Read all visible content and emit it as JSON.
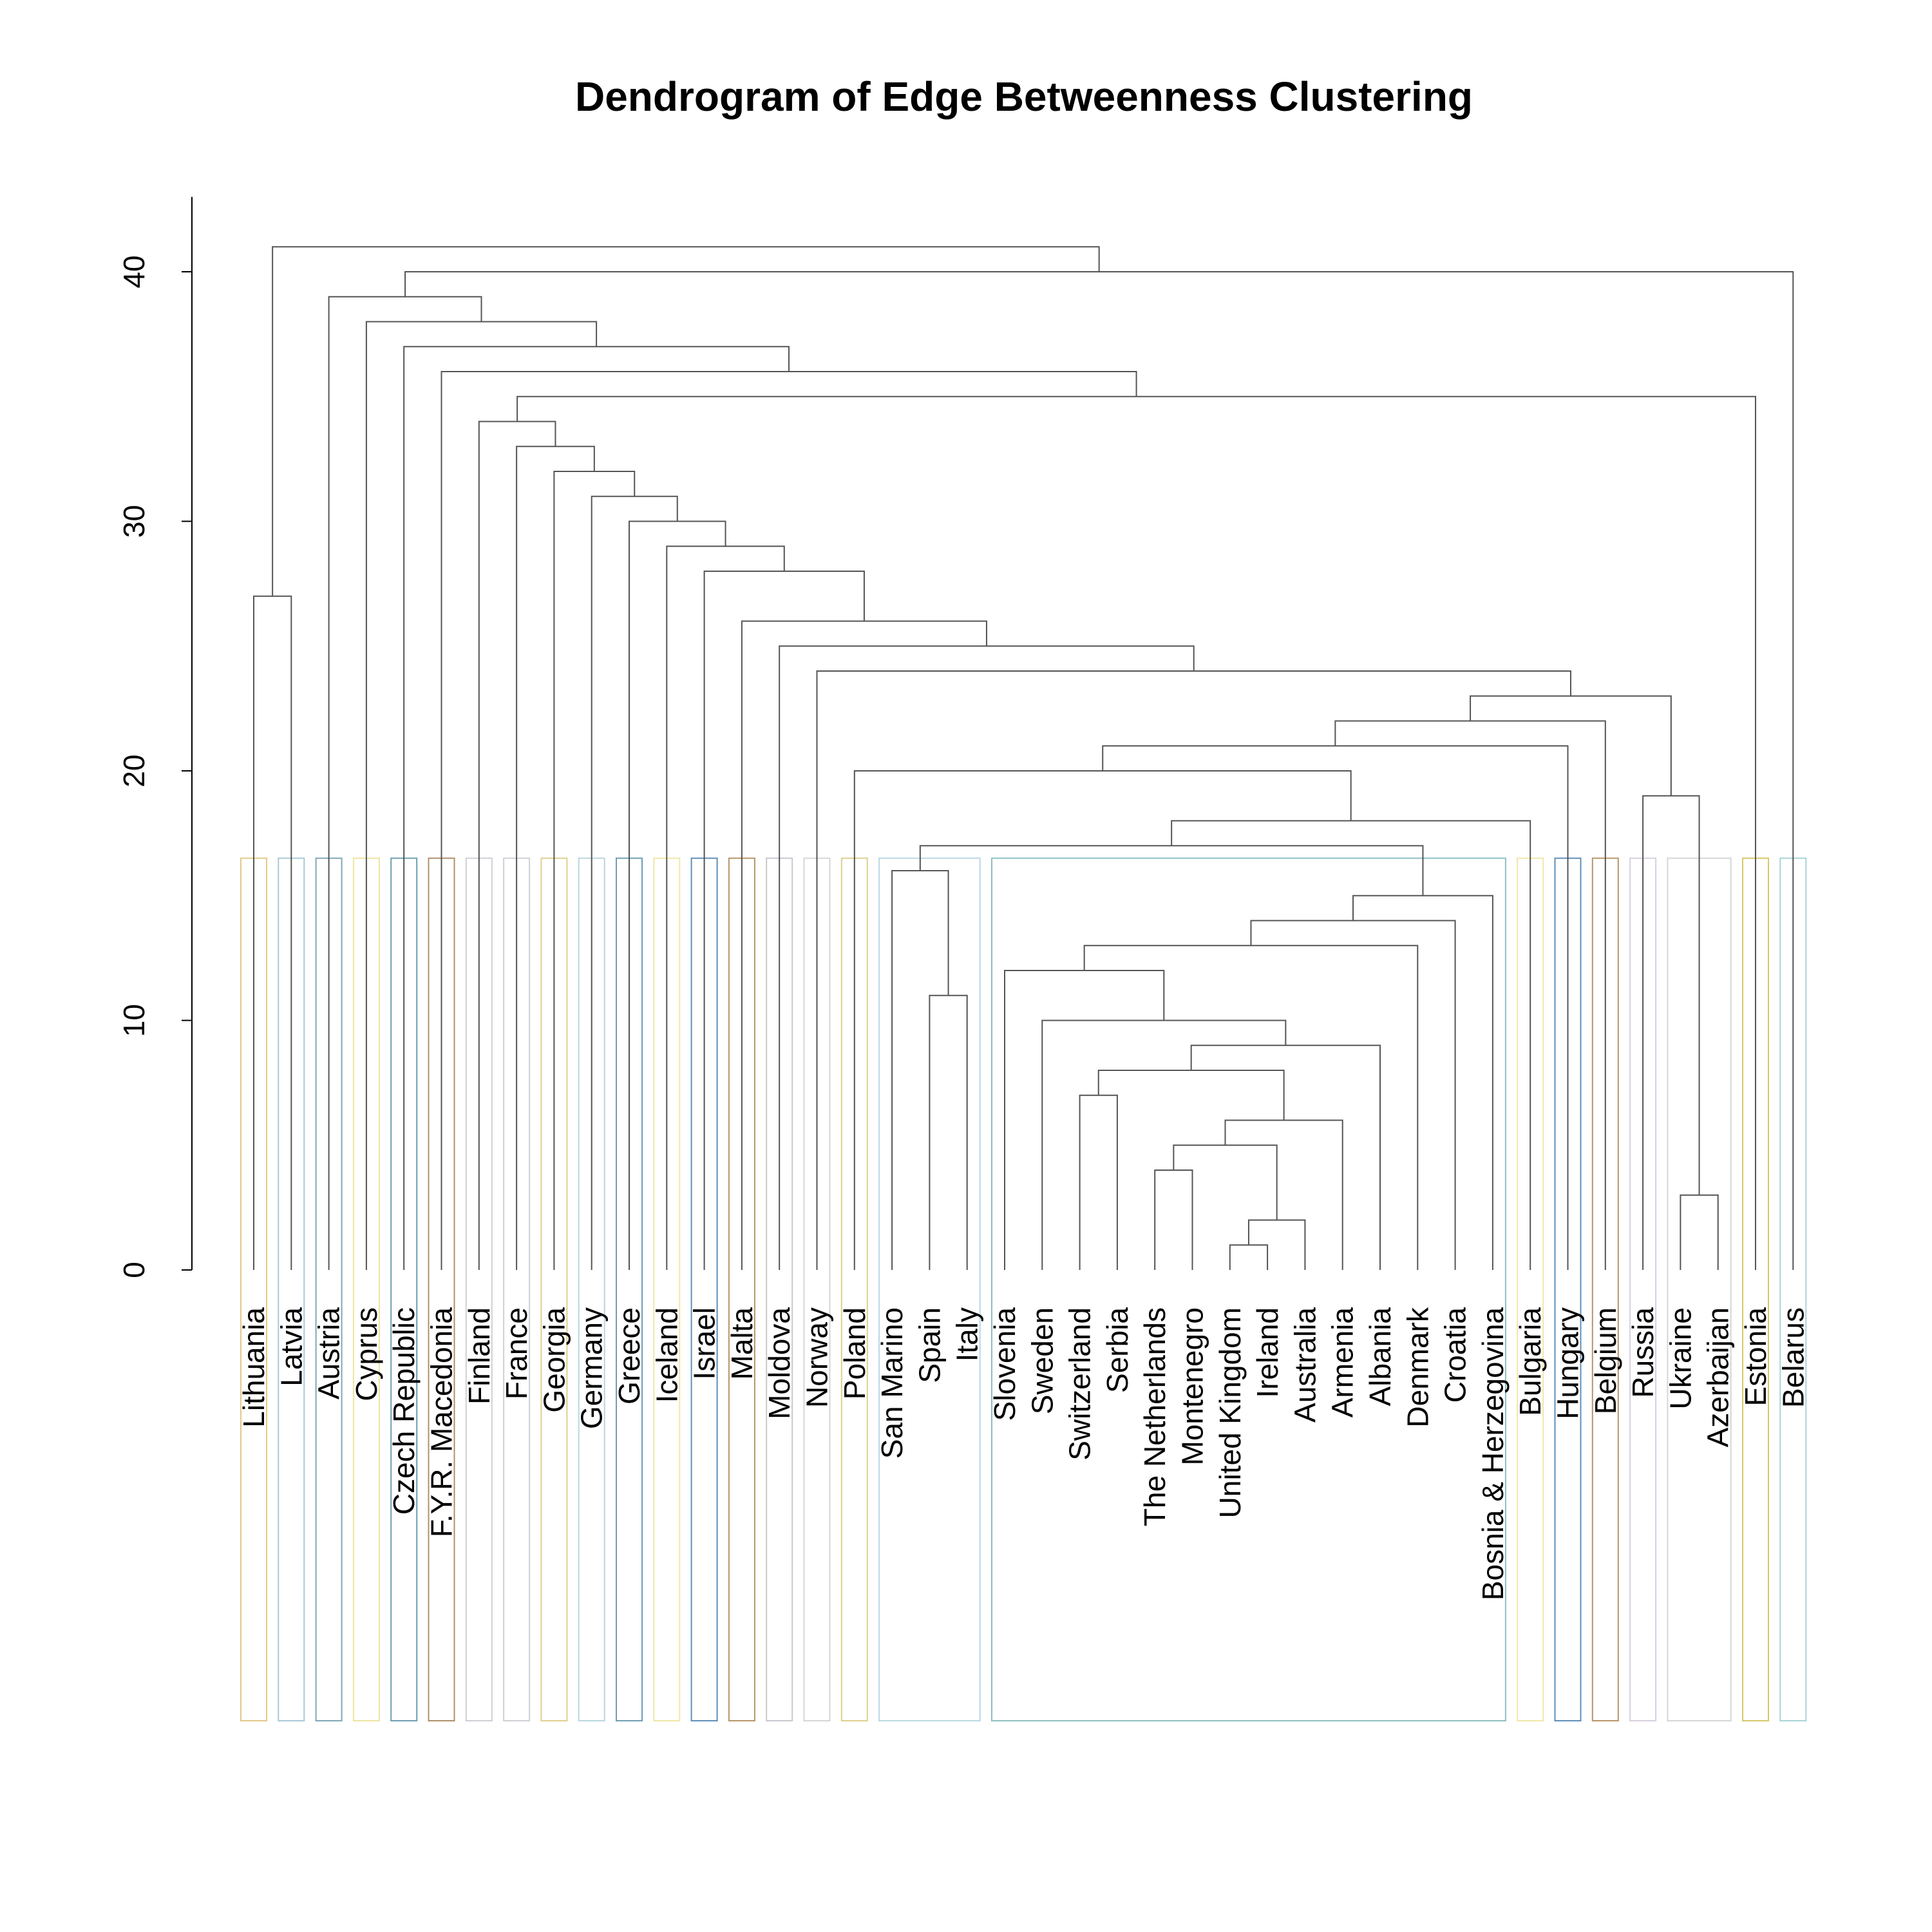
{
  "chart_data": {
    "type": "dendrogram",
    "title": "Dendrogram of Edge Betweenness Clustering",
    "ylim": [
      0,
      43
    ],
    "yticks": [
      0,
      10,
      20,
      30,
      40
    ],
    "leaves": [
      "Lithuania",
      "Latvia",
      "Austria",
      "Cyprus",
      "Czech Republic",
      "F.Y.R. Macedonia",
      "Finland",
      "France",
      "Georgia",
      "Germany",
      "Greece",
      "Iceland",
      "Israel",
      "Malta",
      "Moldova",
      "Norway",
      "Poland",
      "San Marino",
      "Spain",
      "Italy",
      "Slovenia",
      "Sweden",
      "Switzerland",
      "Serbia",
      "The Netherlands",
      "Montenegro",
      "United Kingdom",
      "Ireland",
      "Australia",
      "Armenia",
      "Albania",
      "Denmark",
      "Croatia",
      "Bosnia & Herzegovina",
      "Bulgaria",
      "Hungary",
      "Belgium",
      "Russia",
      "Ukraine",
      "Azerbaijan",
      "Estonia",
      "Belarus"
    ],
    "merges": [
      [
        [
          "L",
          "United Kingdom"
        ],
        [
          "L",
          "Ireland"
        ],
        1
      ],
      [
        [
          "N",
          0
        ],
        [
          "L",
          "Australia"
        ],
        2
      ],
      [
        [
          "L",
          "Ukraine"
        ],
        [
          "L",
          "Azerbaijan"
        ],
        3
      ],
      [
        [
          "L",
          "The Netherlands"
        ],
        [
          "L",
          "Montenegro"
        ],
        4
      ],
      [
        [
          "N",
          3
        ],
        [
          "N",
          1
        ],
        5
      ],
      [
        [
          "N",
          4
        ],
        [
          "L",
          "Armenia"
        ],
        6
      ],
      [
        [
          "L",
          "Switzerland"
        ],
        [
          "L",
          "Serbia"
        ],
        7
      ],
      [
        [
          "N",
          6
        ],
        [
          "N",
          5
        ],
        8
      ],
      [
        [
          "N",
          7
        ],
        [
          "L",
          "Albania"
        ],
        9
      ],
      [
        [
          "L",
          "Sweden"
        ],
        [
          "N",
          8
        ],
        10
      ],
      [
        [
          "L",
          "Spain"
        ],
        [
          "L",
          "Italy"
        ],
        11
      ],
      [
        [
          "L",
          "Slovenia"
        ],
        [
          "N",
          9
        ],
        12
      ],
      [
        [
          "N",
          11
        ],
        [
          "L",
          "Denmark"
        ],
        13
      ],
      [
        [
          "N",
          12
        ],
        [
          "L",
          "Croatia"
        ],
        14
      ],
      [
        [
          "N",
          13
        ],
        [
          "L",
          "Bosnia & Herzegovina"
        ],
        15
      ],
      [
        [
          "L",
          "San Marino"
        ],
        [
          "N",
          10
        ],
        16
      ],
      [
        [
          "N",
          15
        ],
        [
          "N",
          14
        ],
        17
      ],
      [
        [
          "N",
          16
        ],
        [
          "L",
          "Bulgaria"
        ],
        18
      ],
      [
        [
          "L",
          "Russia"
        ],
        [
          "N",
          2
        ],
        19
      ],
      [
        [
          "L",
          "Poland"
        ],
        [
          "N",
          17
        ],
        20
      ],
      [
        [
          "N",
          19
        ],
        [
          "L",
          "Hungary"
        ],
        21
      ],
      [
        [
          "N",
          20
        ],
        [
          "L",
          "Belgium"
        ],
        22
      ],
      [
        [
          "N",
          21
        ],
        [
          "N",
          18
        ],
        23
      ],
      [
        [
          "L",
          "Norway"
        ],
        [
          "N",
          22
        ],
        24
      ],
      [
        [
          "L",
          "Moldova"
        ],
        [
          "N",
          23
        ],
        25
      ],
      [
        [
          "L",
          "Malta"
        ],
        [
          "N",
          24
        ],
        26
      ],
      [
        [
          "L",
          "Lithuania"
        ],
        [
          "L",
          "Latvia"
        ],
        27
      ],
      [
        [
          "L",
          "Israel"
        ],
        [
          "N",
          25
        ],
        28
      ],
      [
        [
          "L",
          "Iceland"
        ],
        [
          "N",
          27
        ],
        29
      ],
      [
        [
          "L",
          "Greece"
        ],
        [
          "N",
          28
        ],
        30
      ],
      [
        [
          "L",
          "Germany"
        ],
        [
          "N",
          29
        ],
        31
      ],
      [
        [
          "L",
          "Georgia"
        ],
        [
          "N",
          30
        ],
        32
      ],
      [
        [
          "L",
          "France"
        ],
        [
          "N",
          31
        ],
        33
      ],
      [
        [
          "L",
          "Finland"
        ],
        [
          "N",
          32
        ],
        34
      ],
      [
        [
          "N",
          33
        ],
        [
          "L",
          "Estonia"
        ],
        35
      ],
      [
        [
          "L",
          "F.Y.R. Macedonia"
        ],
        [
          "N",
          34
        ],
        36
      ],
      [
        [
          "L",
          "Czech Republic"
        ],
        [
          "N",
          35
        ],
        37
      ],
      [
        [
          "L",
          "Cyprus"
        ],
        [
          "N",
          36
        ],
        38
      ],
      [
        [
          "L",
          "Austria"
        ],
        [
          "N",
          37
        ],
        39
      ],
      [
        [
          "N",
          38
        ],
        [
          "L",
          "Belarus"
        ],
        40
      ],
      [
        [
          "N",
          26
        ],
        [
          "N",
          39
        ],
        41
      ]
    ],
    "cluster_boxes": [
      {
        "from": 0,
        "to": 0,
        "color": "#e3c98a"
      },
      {
        "from": 1,
        "to": 1,
        "color": "#a9c9d6"
      },
      {
        "from": 2,
        "to": 2,
        "color": "#7fa8b8"
      },
      {
        "from": 3,
        "to": 3,
        "color": "#ede3a0"
      },
      {
        "from": 4,
        "to": 4,
        "color": "#6f9fb3"
      },
      {
        "from": 5,
        "to": 5,
        "color": "#b0906a"
      },
      {
        "from": 6,
        "to": 6,
        "color": "#cfcfd6"
      },
      {
        "from": 7,
        "to": 7,
        "color": "#cfcfd6"
      },
      {
        "from": 8,
        "to": 8,
        "color": "#e0cf8e"
      },
      {
        "from": 9,
        "to": 9,
        "color": "#b9d6e0"
      },
      {
        "from": 10,
        "to": 10,
        "color": "#6f9fb3"
      },
      {
        "from": 11,
        "to": 11,
        "color": "#f0e7a8"
      },
      {
        "from": 12,
        "to": 12,
        "color": "#5f8fb8"
      },
      {
        "from": 13,
        "to": 13,
        "color": "#b8956a"
      },
      {
        "from": 14,
        "to": 14,
        "color": "#c8c8d0"
      },
      {
        "from": 15,
        "to": 15,
        "color": "#d6d6d6"
      },
      {
        "from": 16,
        "to": 16,
        "color": "#e0cf8e"
      },
      {
        "from": 17,
        "to": 19,
        "color": "#b9d9e3"
      },
      {
        "from": 20,
        "to": 33,
        "color": "#8fbfc2"
      },
      {
        "from": 34,
        "to": 34,
        "color": "#f0e7a8"
      },
      {
        "from": 35,
        "to": 35,
        "color": "#5f8fb8"
      },
      {
        "from": 36,
        "to": 36,
        "color": "#b8956a"
      },
      {
        "from": 37,
        "to": 37,
        "color": "#d8cfe0"
      },
      {
        "from": 38,
        "to": 39,
        "color": "#d6d6d6"
      },
      {
        "from": 40,
        "to": 40,
        "color": "#d6c86a"
      },
      {
        "from": 41,
        "to": 41,
        "color": "#a9d4d6"
      }
    ],
    "cluster_box_top": 16.5
  }
}
